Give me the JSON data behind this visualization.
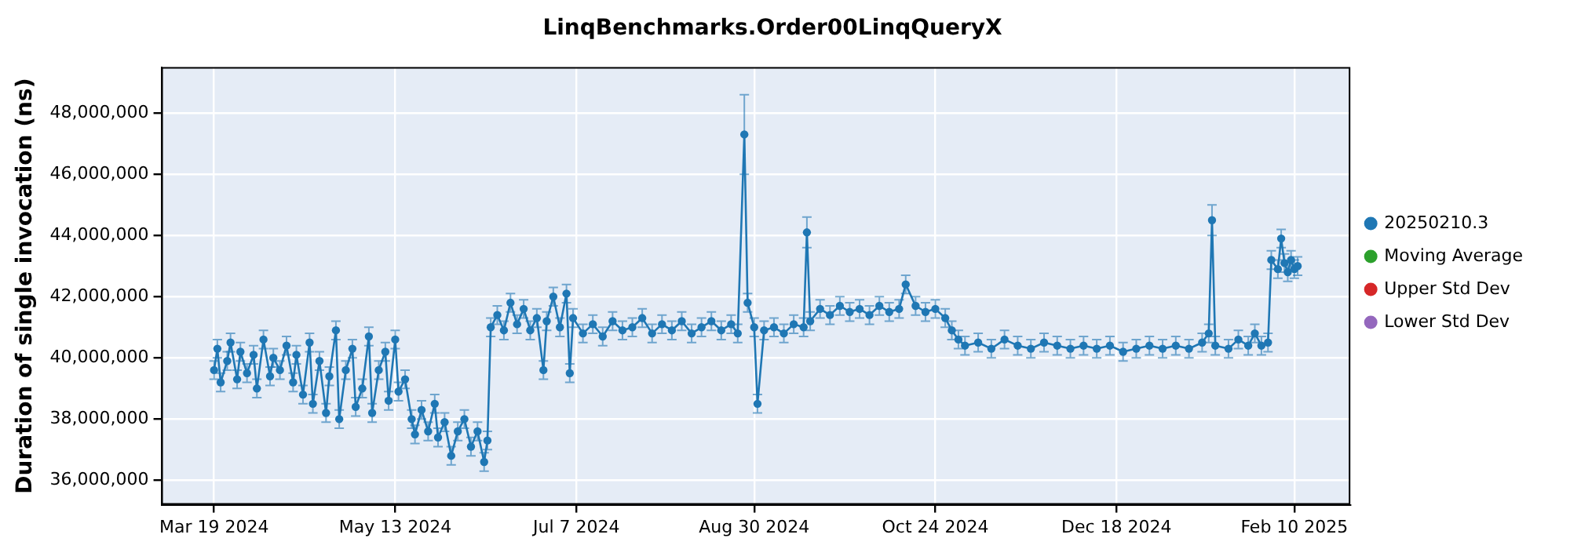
{
  "chart_data": {
    "type": "line",
    "title": "LinqBenchmarks.Order00LinqQueryX",
    "ylabel": "Duration of single invocation (ns)",
    "x": [
      "2024-03-19",
      "2024-03-20",
      "2024-03-21",
      "2024-03-23",
      "2024-03-24",
      "2024-03-26",
      "2024-03-27",
      "2024-03-29",
      "2024-03-31",
      "2024-04-01",
      "2024-04-03",
      "2024-04-05",
      "2024-04-06",
      "2024-04-08",
      "2024-04-10",
      "2024-04-12",
      "2024-04-13",
      "2024-04-15",
      "2024-04-17",
      "2024-04-18",
      "2024-04-20",
      "2024-04-22",
      "2024-04-23",
      "2024-04-25",
      "2024-04-26",
      "2024-04-28",
      "2024-04-30",
      "2024-05-01",
      "2024-05-03",
      "2024-05-05",
      "2024-05-06",
      "2024-05-08",
      "2024-05-10",
      "2024-05-11",
      "2024-05-13",
      "2024-05-14",
      "2024-05-16",
      "2024-05-18",
      "2024-05-19",
      "2024-05-21",
      "2024-05-23",
      "2024-05-25",
      "2024-05-26",
      "2024-05-28",
      "2024-05-30",
      "2024-06-01",
      "2024-06-03",
      "2024-06-05",
      "2024-06-07",
      "2024-06-09",
      "2024-06-10",
      "2024-06-11",
      "2024-06-13",
      "2024-06-15",
      "2024-06-17",
      "2024-06-19",
      "2024-06-21",
      "2024-06-23",
      "2024-06-25",
      "2024-06-27",
      "2024-06-28",
      "2024-06-30",
      "2024-07-02",
      "2024-07-04",
      "2024-07-05",
      "2024-07-06",
      "2024-07-09",
      "2024-07-12",
      "2024-07-15",
      "2024-07-18",
      "2024-07-21",
      "2024-07-24",
      "2024-07-27",
      "2024-07-30",
      "2024-08-02",
      "2024-08-05",
      "2024-08-08",
      "2024-08-11",
      "2024-08-14",
      "2024-08-17",
      "2024-08-20",
      "2024-08-23",
      "2024-08-25",
      "2024-08-27",
      "2024-08-28",
      "2024-08-30",
      "2024-08-31",
      "2024-09-02",
      "2024-09-05",
      "2024-09-08",
      "2024-09-11",
      "2024-09-14",
      "2024-09-15",
      "2024-09-16",
      "2024-09-19",
      "2024-09-22",
      "2024-09-25",
      "2024-09-28",
      "2024-10-01",
      "2024-10-04",
      "2024-10-07",
      "2024-10-10",
      "2024-10-13",
      "2024-10-15",
      "2024-10-18",
      "2024-10-21",
      "2024-10-24",
      "2024-10-27",
      "2024-10-29",
      "2024-10-31",
      "2024-11-02",
      "2024-11-06",
      "2024-11-10",
      "2024-11-14",
      "2024-11-18",
      "2024-11-22",
      "2024-11-26",
      "2024-11-30",
      "2024-12-04",
      "2024-12-08",
      "2024-12-12",
      "2024-12-16",
      "2024-12-20",
      "2024-12-24",
      "2024-12-28",
      "2025-01-01",
      "2025-01-05",
      "2025-01-09",
      "2025-01-13",
      "2025-01-15",
      "2025-01-16",
      "2025-01-17",
      "2025-01-21",
      "2025-01-24",
      "2025-01-27",
      "2025-01-29",
      "2025-01-31",
      "2025-02-02",
      "2025-02-03",
      "2025-02-05",
      "2025-02-06",
      "2025-02-07",
      "2025-02-08",
      "2025-02-09",
      "2025-02-10",
      "2025-02-11"
    ],
    "series": [
      {
        "name": "20250210.3",
        "color": "#1f77b4",
        "values": [
          39600000,
          40300000,
          39200000,
          39900000,
          40500000,
          39300000,
          40200000,
          39500000,
          40100000,
          39000000,
          40600000,
          39400000,
          40000000,
          39600000,
          40400000,
          39200000,
          40100000,
          38800000,
          40500000,
          38500000,
          39900000,
          38200000,
          39400000,
          40900000,
          38000000,
          39600000,
          40300000,
          38400000,
          39000000,
          40700000,
          38200000,
          39600000,
          40200000,
          38600000,
          40600000,
          38900000,
          39300000,
          38000000,
          37500000,
          38300000,
          37600000,
          38500000,
          37400000,
          37900000,
          36800000,
          37600000,
          38000000,
          37100000,
          37600000,
          36600000,
          37300000,
          41000000,
          41400000,
          40900000,
          41800000,
          41100000,
          41600000,
          40900000,
          41300000,
          39600000,
          41200000,
          42000000,
          41000000,
          42100000,
          39500000,
          41300000,
          40800000,
          41100000,
          40700000,
          41200000,
          40900000,
          41000000,
          41300000,
          40800000,
          41100000,
          40900000,
          41200000,
          40800000,
          41000000,
          41200000,
          40900000,
          41100000,
          40800000,
          47300000,
          41800000,
          41000000,
          38500000,
          40900000,
          41000000,
          40800000,
          41100000,
          41000000,
          44100000,
          41200000,
          41600000,
          41400000,
          41700000,
          41500000,
          41600000,
          41400000,
          41700000,
          41500000,
          41600000,
          42400000,
          41700000,
          41500000,
          41600000,
          41300000,
          40900000,
          40600000,
          40400000,
          40500000,
          40300000,
          40600000,
          40400000,
          40300000,
          40500000,
          40400000,
          40300000,
          40400000,
          40300000,
          40400000,
          40200000,
          40300000,
          40400000,
          40300000,
          40400000,
          40300000,
          40500000,
          40800000,
          44500000,
          40400000,
          40300000,
          40600000,
          40400000,
          40800000,
          40400000,
          40500000,
          43200000,
          42900000,
          43900000,
          43100000,
          42800000,
          43200000,
          42900000,
          43000000
        ],
        "errors": [
          300000,
          300000,
          300000,
          300000,
          300000,
          300000,
          300000,
          300000,
          300000,
          300000,
          300000,
          300000,
          300000,
          300000,
          300000,
          300000,
          300000,
          300000,
          300000,
          300000,
          300000,
          300000,
          300000,
          300000,
          300000,
          300000,
          300000,
          300000,
          300000,
          300000,
          300000,
          300000,
          300000,
          300000,
          300000,
          300000,
          300000,
          300000,
          300000,
          300000,
          300000,
          300000,
          300000,
          300000,
          300000,
          300000,
          300000,
          300000,
          300000,
          300000,
          300000,
          300000,
          300000,
          300000,
          300000,
          300000,
          300000,
          300000,
          300000,
          300000,
          300000,
          300000,
          300000,
          300000,
          300000,
          300000,
          300000,
          300000,
          300000,
          300000,
          300000,
          300000,
          300000,
          300000,
          300000,
          300000,
          300000,
          300000,
          300000,
          300000,
          300000,
          300000,
          300000,
          [
            46000000,
            48600000
          ],
          300000,
          300000,
          300000,
          300000,
          300000,
          300000,
          300000,
          300000,
          [
            43600000,
            44600000
          ],
          300000,
          300000,
          300000,
          300000,
          300000,
          300000,
          300000,
          300000,
          300000,
          300000,
          300000,
          300000,
          300000,
          300000,
          300000,
          300000,
          300000,
          300000,
          300000,
          300000,
          300000,
          300000,
          300000,
          300000,
          300000,
          300000,
          300000,
          300000,
          300000,
          300000,
          300000,
          300000,
          300000,
          300000,
          300000,
          300000,
          300000,
          [
            44000000,
            45000000
          ],
          300000,
          300000,
          300000,
          300000,
          300000,
          300000,
          300000,
          300000,
          300000,
          300000,
          300000,
          300000,
          300000,
          300000,
          300000
        ]
      },
      {
        "name": "Moving Average",
        "color": "#2ca02c",
        "values": [
          null,
          null,
          null,
          null,
          null,
          null,
          null,
          null,
          null,
          null,
          null,
          null,
          null,
          null,
          null,
          null,
          null,
          null,
          null,
          null,
          null,
          null,
          null,
          null,
          null,
          null,
          null,
          null,
          null,
          null,
          null,
          null,
          null,
          null,
          null,
          null,
          null,
          null,
          null,
          null,
          null,
          null,
          null,
          null,
          null,
          null,
          null,
          null,
          null,
          null,
          null,
          null,
          null,
          null,
          null,
          null,
          null,
          null,
          null,
          null,
          null,
          null,
          null,
          null,
          null,
          null,
          null,
          null,
          null,
          null,
          null,
          null,
          null,
          null,
          null,
          null,
          null,
          null,
          null,
          null,
          null,
          null,
          null,
          null,
          null,
          null,
          null,
          null,
          null,
          null,
          null,
          null,
          null,
          null,
          null,
          null,
          null,
          null,
          null,
          null,
          null,
          null,
          null,
          null,
          null,
          null,
          null,
          null,
          null,
          null,
          null,
          null,
          null,
          null,
          null,
          null,
          null,
          null,
          null,
          null,
          null,
          null,
          null,
          null,
          null,
          null,
          null,
          null,
          null,
          null,
          null,
          null,
          null,
          null,
          null,
          null,
          null,
          null,
          null,
          null,
          null,
          null,
          null,
          null,
          null,
          null
        ]
      },
      {
        "name": "Upper Std Dev",
        "color": "#d62728",
        "values": [
          null,
          null,
          null,
          null,
          null,
          null,
          null,
          null,
          null,
          null,
          null,
          null,
          null,
          null,
          null,
          null,
          null,
          null,
          null,
          null,
          null,
          null,
          null,
          null,
          null,
          null,
          null,
          null,
          null,
          null,
          null,
          null,
          null,
          null,
          null,
          null,
          null,
          null,
          null,
          null,
          null,
          null,
          null,
          null,
          null,
          null,
          null,
          null,
          null,
          null,
          null,
          null,
          null,
          null,
          null,
          null,
          null,
          null,
          null,
          null,
          null,
          null,
          null,
          null,
          null,
          null,
          null,
          null,
          null,
          null,
          null,
          null,
          null,
          null,
          null,
          null,
          null,
          null,
          null,
          null,
          null,
          null,
          null,
          null,
          null,
          null,
          null,
          null,
          null,
          null,
          null,
          null,
          null,
          null,
          null,
          null,
          null,
          null,
          null,
          null,
          null,
          null,
          null,
          null,
          null,
          null,
          null,
          null,
          null,
          null,
          null,
          null,
          null,
          null,
          null,
          null,
          null,
          null,
          null,
          null,
          null,
          null,
          null,
          null,
          null,
          null,
          null,
          null,
          null,
          null,
          null,
          null,
          null,
          null,
          null,
          null,
          null,
          null,
          null,
          null,
          null,
          null,
          null,
          null,
          null,
          null
        ]
      },
      {
        "name": "Lower Std Dev",
        "color": "#9467bd",
        "values": [
          null,
          null,
          null,
          null,
          null,
          null,
          null,
          null,
          null,
          null,
          null,
          null,
          null,
          null,
          null,
          null,
          null,
          null,
          null,
          null,
          null,
          null,
          null,
          null,
          null,
          null,
          null,
          null,
          null,
          null,
          null,
          null,
          null,
          null,
          null,
          null,
          null,
          null,
          null,
          null,
          null,
          null,
          null,
          null,
          null,
          null,
          null,
          null,
          null,
          null,
          null,
          null,
          null,
          null,
          null,
          null,
          null,
          null,
          null,
          null,
          null,
          null,
          null,
          null,
          null,
          null,
          null,
          null,
          null,
          null,
          null,
          null,
          null,
          null,
          null,
          null,
          null,
          null,
          null,
          null,
          null,
          null,
          null,
          null,
          null,
          null,
          null,
          null,
          null,
          null,
          null,
          null,
          null,
          null,
          null,
          null,
          null,
          null,
          null,
          null,
          null,
          null,
          null,
          null,
          null,
          null,
          null,
          null,
          null,
          null,
          null,
          null,
          null,
          null,
          null,
          null,
          null,
          null,
          null,
          null,
          null,
          null,
          null,
          null,
          null,
          null,
          null,
          null,
          null,
          null,
          null,
          null,
          null,
          null,
          null,
          null,
          null,
          null,
          null,
          null,
          null,
          null,
          null,
          null,
          null,
          null
        ]
      }
    ],
    "xlim": [
      "2024-03-03",
      "2025-02-27"
    ],
    "xticks": [
      {
        "value": "2024-03-19",
        "label": "Mar 19 2024"
      },
      {
        "value": "2024-05-13",
        "label": "May 13 2024"
      },
      {
        "value": "2024-07-07",
        "label": "Jul 7 2024"
      },
      {
        "value": "2024-08-30",
        "label": "Aug 30 2024"
      },
      {
        "value": "2024-10-24",
        "label": "Oct 24 2024"
      },
      {
        "value": "2024-12-18",
        "label": "Dec 18 2024"
      },
      {
        "value": "2025-02-10",
        "label": "Feb 10 2025"
      }
    ],
    "ylim": [
      35200000,
      49500000
    ],
    "yticks": [
      {
        "value": 36000000,
        "label": "36,000,000"
      },
      {
        "value": 38000000,
        "label": "38,000,000"
      },
      {
        "value": 40000000,
        "label": "40,000,000"
      },
      {
        "value": 42000000,
        "label": "42,000,000"
      },
      {
        "value": 44000000,
        "label": "44,000,000"
      },
      {
        "value": 46000000,
        "label": "46,000,000"
      },
      {
        "value": 48000000,
        "label": "48,000,000"
      }
    ],
    "grid": true,
    "legend": "right",
    "marker": "circle",
    "line_style": "solid"
  }
}
